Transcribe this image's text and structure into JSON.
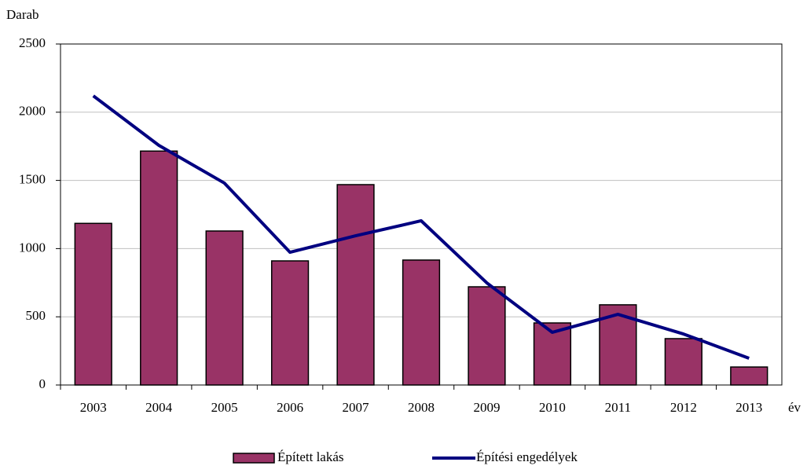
{
  "chart_data": {
    "type": "bar",
    "y_label": "Darab",
    "x_label": "év",
    "categories": [
      "2003",
      "2004",
      "2005",
      "2006",
      "2007",
      "2008",
      "2009",
      "2010",
      "2011",
      "2012",
      "2013"
    ],
    "series": [
      {
        "name": "Épített lakás",
        "type": "bar",
        "color": "#993366",
        "values": [
          1185,
          1715,
          1129,
          910,
          1469,
          916,
          720,
          455,
          588,
          340,
          132
        ]
      },
      {
        "name": "Építési engedélyek",
        "type": "line",
        "color": "#000080",
        "values": [
          2120,
          1757,
          1480,
          973,
          1094,
          1204,
          749,
          386,
          518,
          374,
          196
        ]
      }
    ],
    "ylim": [
      0,
      2500
    ],
    "yticks": [
      0,
      500,
      1000,
      1500,
      2000,
      2500
    ],
    "grid": true
  }
}
